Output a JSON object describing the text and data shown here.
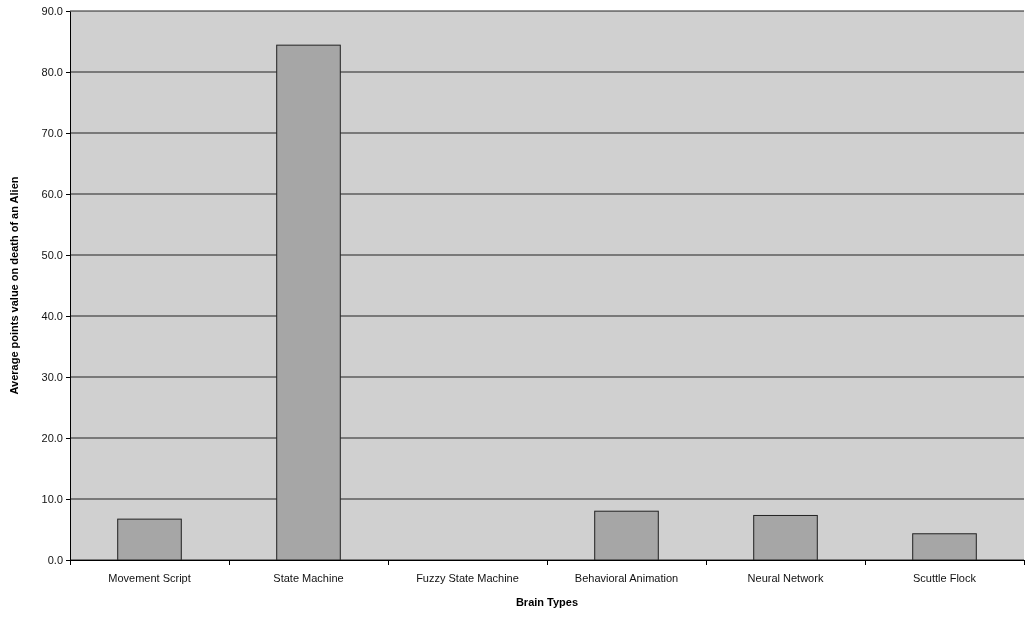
{
  "chart_data": {
    "type": "bar",
    "xlabel": "Brain Types",
    "ylabel": "Average points value on death of an Alien",
    "categories": [
      "Movement Script",
      "State Machine",
      "Fuzzy State Machine",
      "Behavioral Animation",
      "Neural Network",
      "Scuttle Flock"
    ],
    "values": [
      6.7,
      84.4,
      0,
      8.0,
      7.3,
      4.3
    ],
    "color": "#a6a6a6",
    "ylim": [
      0,
      90
    ],
    "yticks": [
      {
        "value": 0,
        "label": "0.0"
      },
      {
        "value": 10,
        "label": "10.0"
      },
      {
        "value": 20,
        "label": "20.0"
      },
      {
        "value": 30,
        "label": "30.0"
      },
      {
        "value": 40,
        "label": "40.0"
      },
      {
        "value": 50,
        "label": "50.0"
      },
      {
        "value": 60,
        "label": "60.0"
      },
      {
        "value": 70,
        "label": "70.0"
      },
      {
        "value": 80,
        "label": "80.0"
      },
      {
        "value": 90,
        "label": "90.0"
      }
    ],
    "grid": "y"
  }
}
